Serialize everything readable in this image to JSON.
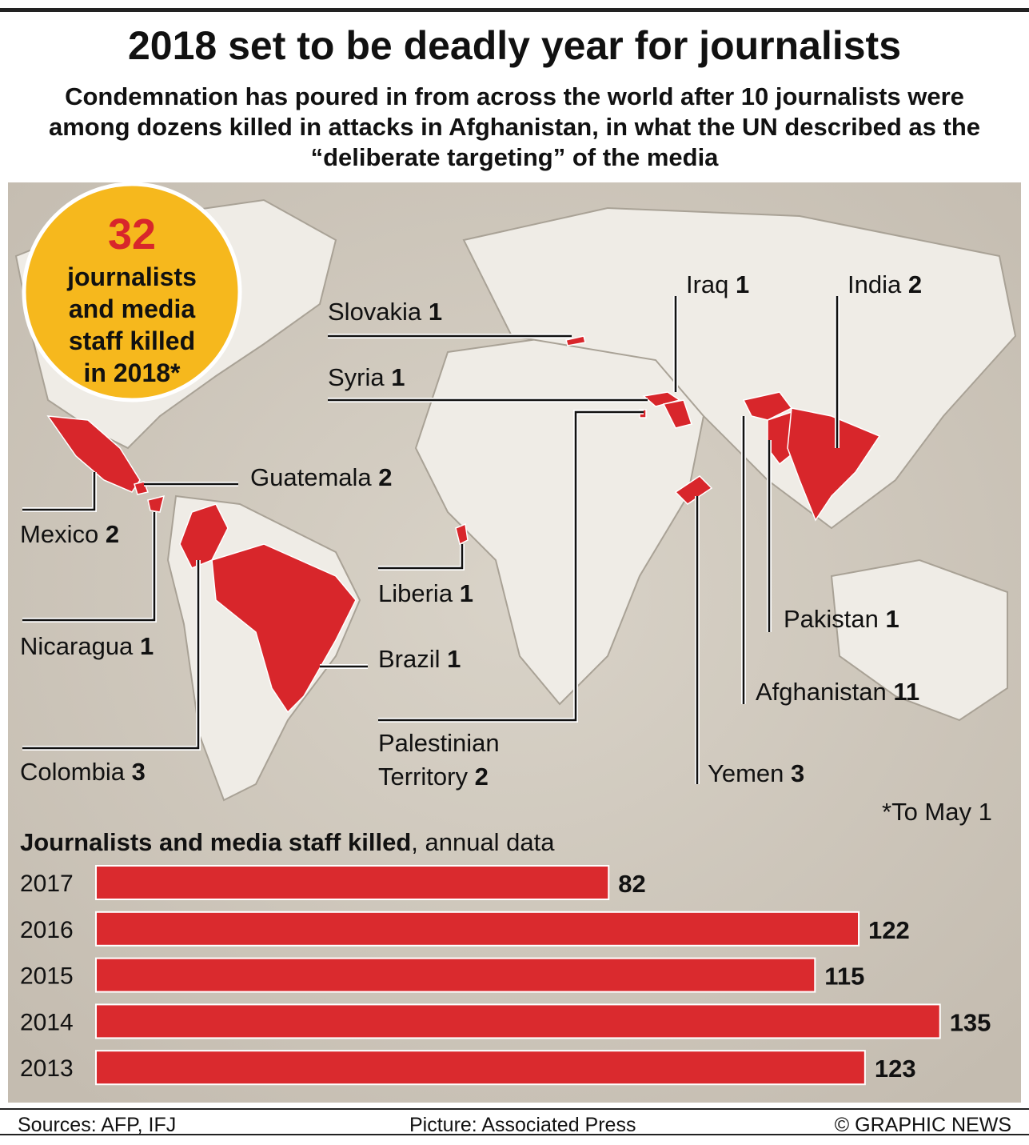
{
  "header": {
    "title": "2018 set to be deadly year for journalists",
    "subtitle": "Condemnation has poured in from across the world after 10 journalists were among dozens killed in attacks in Afghanistan, in what the UN described as the “deliberate targeting” of the media"
  },
  "callout": {
    "value": 32,
    "text": "journalists and media staff killed in 2018*"
  },
  "map": {
    "labels": [
      {
        "name": "Slovakia",
        "count": 1
      },
      {
        "name": "Iraq",
        "count": 1
      },
      {
        "name": "India",
        "count": 2
      },
      {
        "name": "Syria",
        "count": 1
      },
      {
        "name": "Guatemala",
        "count": 2
      },
      {
        "name": "Mexico",
        "count": 2
      },
      {
        "name": "Liberia",
        "count": 1
      },
      {
        "name": "Nicaragua",
        "count": 1
      },
      {
        "name": "Brazil",
        "count": 1
      },
      {
        "name": "Pakistan",
        "count": 1
      },
      {
        "name": "Afghanistan",
        "count": 11
      },
      {
        "name": "Colombia",
        "count": 3
      },
      {
        "name": "Palestinian Territory",
        "count": 2
      },
      {
        "name": "Yemen",
        "count": 3
      }
    ],
    "footnote": "*To May 1"
  },
  "chart_data": {
    "type": "bar",
    "orientation": "horizontal",
    "title": "Journalists and media staff killed",
    "title_suffix": ", annual data",
    "categories": [
      "2017",
      "2016",
      "2015",
      "2014",
      "2013"
    ],
    "values": [
      82,
      122,
      115,
      135,
      123
    ],
    "color": "#da2a2e"
  },
  "footer": {
    "sources": "Sources: AFP, IFJ",
    "picture": "Picture: Associated Press",
    "credit": "© GRAPHIC NEWS"
  }
}
